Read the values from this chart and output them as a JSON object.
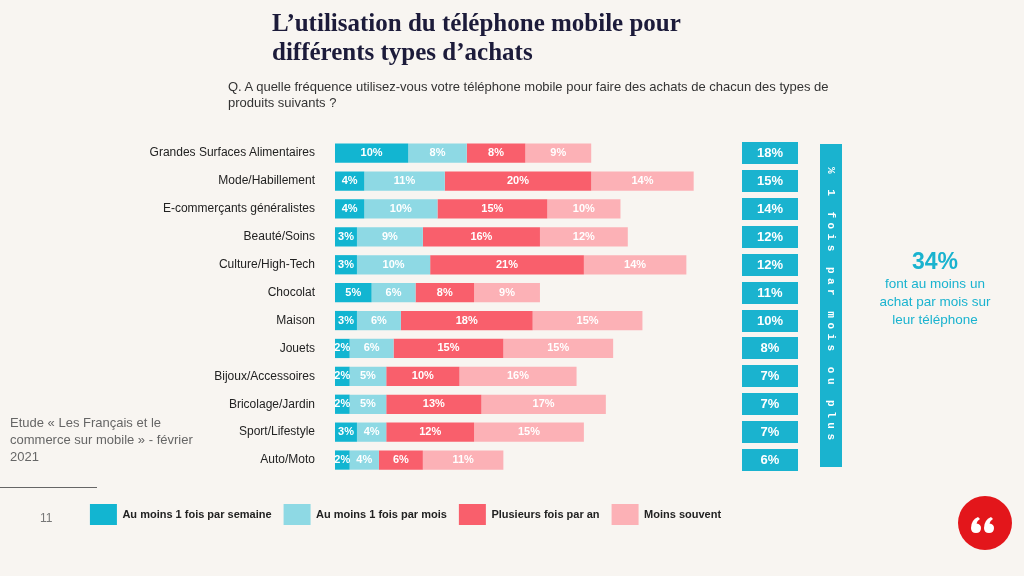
{
  "chart_data": {
    "type": "bar",
    "orientation": "horizontal",
    "stacked": true,
    "title": "L’utilisation du téléphone mobile pour différents types d’achats",
    "subtitle": "Q. A quelle fréquence utilisez-vous votre téléphone mobile pour faire des achats de chacun des types de produits suivants ?",
    "categories": [
      "Grandes Surfaces Alimentaires",
      "Mode/Habillement",
      "E-commerçants généralistes",
      "Beauté/Soins",
      "Culture/High-Tech",
      "Chocolat",
      "Maison",
      "Jouets",
      "Bijoux/Accessoires",
      "Bricolage/Jardin",
      "Sport/Lifestyle",
      "Auto/Moto"
    ],
    "series": [
      {
        "name": "Au moins 1 fois par semaine",
        "color": "#12b5d1",
        "values": [
          10,
          4,
          4,
          3,
          3,
          5,
          3,
          2,
          2,
          2,
          3,
          2
        ],
        "value_labels": [
          "10%",
          "4%",
          "4%",
          "3%",
          "3%",
          "5%",
          "3%",
          "2%",
          "2%",
          "2%",
          "3%",
          "2%"
        ]
      },
      {
        "name": "Au moins 1 fois par mois",
        "color": "#8ed9e4",
        "values": [
          8,
          11,
          10,
          9,
          10,
          6,
          6,
          6,
          5,
          5,
          4,
          4
        ],
        "value_labels": [
          "8%",
          "11%",
          "10%",
          "9%",
          "10%",
          "6%",
          "6%",
          "6%",
          "5%",
          "5%",
          "4%",
          "4%"
        ]
      },
      {
        "name": "Plusieurs fois par an",
        "color": "#f95f6c",
        "values": [
          8,
          20,
          15,
          16,
          21,
          8,
          18,
          15,
          10,
          13,
          12,
          6
        ],
        "value_labels": [
          "8%",
          "20%",
          "15%",
          "16%",
          "21%",
          "8%",
          "18%",
          "15%",
          "10%",
          "13%",
          "12%",
          "6%"
        ]
      },
      {
        "name": "Moins souvent",
        "color": "#fcb1b6",
        "values": [
          9,
          14,
          10,
          12,
          14,
          9,
          15,
          15,
          16,
          17,
          15,
          11
        ],
        "value_labels": [
          "9%",
          "14%",
          "10%",
          "12%",
          "14%",
          "9%",
          "15%",
          "15%",
          "16%",
          "17%",
          "15%",
          "11%"
        ]
      }
    ],
    "annotations": [
      "18%",
      "15%",
      "14%",
      "12%",
      "12%",
      "11%",
      "10%",
      "8%",
      "7%",
      "7%",
      "7%",
      "6%",
      "% 1 fois par mois ou plus",
      "34%",
      "font au moins un achat par mois sur leur téléphone",
      "Etude « Les Français et le commerce sur mobile » - février 2021",
      "11"
    ],
    "legend": "bottom",
    "tick_labels": "y"
  }
}
